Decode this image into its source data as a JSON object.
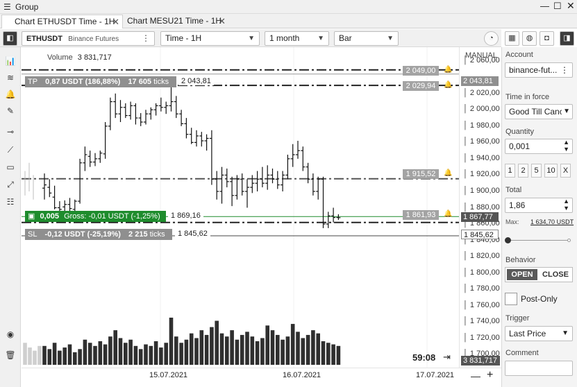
{
  "window": {
    "title": "Group"
  },
  "tabs": [
    {
      "label": "Chart ETHUSDT Time - 1H",
      "active": true
    },
    {
      "label": "Chart MESU21 Time - 1H",
      "active": false
    }
  ],
  "toolbar": {
    "symbol": "ETHUSDT",
    "exchange": "Binance Futures",
    "timeframe": "Time - 1H",
    "period": "1 month",
    "chart_type": "Bar"
  },
  "chart": {
    "volume_label": "Volume",
    "volume_value": "3 831,717",
    "manual_label": "MANUAL",
    "date_labels": [
      "15.07.2021",
      "16.07.2021",
      "17.07.2021"
    ],
    "timer": "59:08",
    "price_labels": [
      "2 060,00",
      "2 020,00",
      "2 000,00",
      "1 980,00",
      "1 960,00",
      "1 940,00",
      "1 920,00",
      "1 900,00",
      "1 880,00",
      "1 860,00",
      "1 840,00",
      "1 820,00",
      "1 800,00",
      "1 780,00",
      "1 760,00",
      "1 740,00",
      "1 720,00",
      "1 700,00"
    ],
    "volume_axis_label": "3 831,717",
    "current_price": "1 867,77",
    "tp_price_label": "2 043,81",
    "sl_price_label": "1 845,62",
    "alerts": [
      "2 049,00",
      "2 029,94",
      "1 915,52",
      "1 861,93"
    ],
    "tp_order": {
      "tag": "TP",
      "text": "0,87 USDT (186,88%)",
      "ticks": "17 605",
      "ticks_label": "ticks",
      "price": "2 043,81"
    },
    "position": {
      "qty": "0,005",
      "gross": "Gross: -0,01 USDT (-1,25%)",
      "price": "1 869,16"
    },
    "sl_order": {
      "tag": "SL",
      "text": "-0,12 USDT (-25,19%)",
      "ticks": "2 215",
      "ticks_label": "ticks",
      "price": "1 845,62"
    },
    "colors": {
      "position": "#1e8c2d",
      "order_label": "#8f8f8f",
      "alert_box": "#a3a3a3"
    }
  },
  "chart_data": {
    "type": "bar",
    "ohlc": [
      [
        1904,
        1922,
        1890,
        1908
      ],
      [
        1905,
        1915,
        1893,
        1898
      ],
      [
        1893,
        1907,
        1878,
        1880
      ],
      [
        1880,
        1888,
        1873,
        1878
      ],
      [
        1881,
        1889,
        1874,
        1884
      ],
      [
        1884,
        1892,
        1876,
        1879
      ],
      [
        1878,
        1890,
        1870,
        1888
      ],
      [
        1888,
        1940,
        1885,
        1935
      ],
      [
        1935,
        1955,
        1925,
        1945
      ],
      [
        1943,
        1950,
        1930,
        1936
      ],
      [
        1936,
        1947,
        1931,
        1940
      ],
      [
        1940,
        1950,
        1935,
        1947
      ],
      [
        1946,
        1985,
        1940,
        1980
      ],
      [
        1980,
        2015,
        1975,
        2010
      ],
      [
        2010,
        2020,
        1990,
        1995
      ],
      [
        1995,
        2012,
        1985,
        2003
      ],
      [
        2003,
        2008,
        1990,
        1993
      ],
      [
        1993,
        2010,
        1988,
        2005
      ],
      [
        2005,
        2008,
        1982,
        1990
      ],
      [
        1990,
        1996,
        1980,
        1985
      ],
      [
        1985,
        2000,
        1982,
        1995
      ],
      [
        1995,
        2003,
        1988,
        2000
      ],
      [
        2000,
        2008,
        1993,
        2005
      ],
      [
        2005,
        2015,
        1998,
        2003
      ],
      [
        2003,
        2010,
        1995,
        2005
      ],
      [
        2005,
        2040,
        1998,
        2010
      ],
      [
        2010,
        2017,
        1990,
        1995
      ],
      [
        1995,
        2000,
        1980,
        1983
      ],
      [
        1983,
        1990,
        1965,
        1970
      ],
      [
        1970,
        1978,
        1958,
        1960
      ],
      [
        1960,
        1975,
        1955,
        1968
      ],
      [
        1968,
        1973,
        1955,
        1962
      ],
      [
        1962,
        1970,
        1950,
        1965
      ],
      [
        1965,
        1975,
        1908,
        1915
      ],
      [
        1915,
        1925,
        1890,
        1900
      ],
      [
        1900,
        1930,
        1885,
        1920
      ],
      [
        1920,
        1928,
        1905,
        1912
      ],
      [
        1912,
        1918,
        1882,
        1895
      ],
      [
        1895,
        1920,
        1890,
        1915
      ],
      [
        1915,
        1922,
        1895,
        1900
      ],
      [
        1900,
        1915,
        1880,
        1905
      ],
      [
        1905,
        1920,
        1898,
        1910
      ],
      [
        1910,
        1925,
        1900,
        1915
      ],
      [
        1915,
        1930,
        1905,
        1910
      ],
      [
        1910,
        1932,
        1902,
        1920
      ],
      [
        1920,
        1928,
        1910,
        1915
      ],
      [
        1915,
        1925,
        1903,
        1908
      ],
      [
        1908,
        1925,
        1900,
        1920
      ],
      [
        1920,
        1945,
        1915,
        1940
      ],
      [
        1940,
        1958,
        1930,
        1945
      ],
      [
        1945,
        1962,
        1940,
        1950
      ],
      [
        1950,
        1955,
        1925,
        1930
      ],
      [
        1930,
        1935,
        1910,
        1915
      ],
      [
        1915,
        1922,
        1895,
        1900
      ],
      [
        1900,
        1918,
        1890,
        1915
      ],
      [
        1915,
        1918,
        1855,
        1860
      ],
      [
        1860,
        1875,
        1855,
        1870
      ],
      [
        1870,
        1880,
        1862,
        1868
      ],
      [
        1868,
        1872,
        1865,
        1867.77
      ]
    ],
    "volume": [
      12,
      10,
      14,
      9,
      11,
      13,
      8,
      10,
      16,
      14,
      12,
      15,
      13,
      18,
      22,
      17,
      14,
      16,
      12,
      10,
      13,
      12,
      15,
      11,
      14,
      30,
      18,
      14,
      16,
      20,
      17,
      22,
      19,
      24,
      28,
      20,
      18,
      22,
      16,
      19,
      21,
      18,
      15,
      17,
      25,
      22,
      19,
      16,
      18,
      26,
      21,
      17,
      19,
      22,
      20,
      15,
      14,
      13,
      12
    ],
    "ylim": [
      1690,
      2070
    ],
    "xlabel": "",
    "ylabel": ""
  },
  "panel": {
    "account_label": "Account",
    "account_value": "binance-fut...",
    "tif_label": "Time in force",
    "tif_value": "Good Till Canc",
    "qty_label": "Quantity",
    "qty_value": "0,001",
    "qty_buttons": [
      "1",
      "2",
      "5",
      "10",
      "X"
    ],
    "total_label": "Total",
    "total_value": "1,86",
    "max_label": "Max:",
    "max_value": "1 634,70 USDT",
    "behavior_label": "Behavior",
    "open_label": "OPEN",
    "close_label": "CLOSE",
    "post_only_label": "Post-Only",
    "trigger_label": "Trigger",
    "trigger_value": "Last Price",
    "comment_label": "Comment"
  }
}
